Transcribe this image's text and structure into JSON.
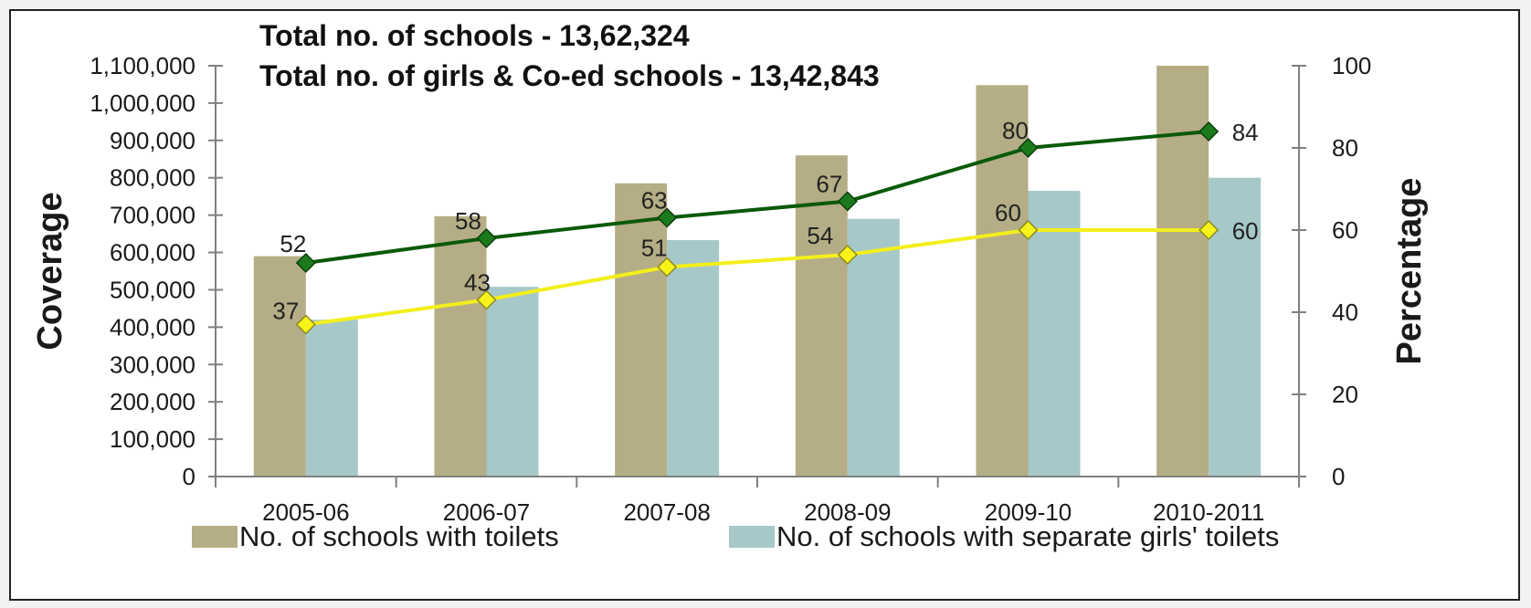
{
  "chart_data": {
    "type": "bar",
    "categories": [
      "2005-06",
      "2006-07",
      "2007-08",
      "2008-09",
      "2009-10",
      "2010-2011"
    ],
    "ylabel": "Coverage",
    "y2label": "Percentage",
    "ylim": [
      0,
      1100000
    ],
    "y2lim": [
      0,
      100
    ],
    "yticks": [
      "0",
      "100,000",
      "200,000",
      "300,000",
      "400,000",
      "500,000",
      "600,000",
      "700,000",
      "800,000",
      "900,000",
      "1,000,000",
      "1,100,000"
    ],
    "y2ticks": [
      "0",
      "20",
      "40",
      "60",
      "80",
      "100"
    ],
    "annotations": [
      "Total no. of schools - 13,62,324",
      "Total no. of girls & Co-ed schools - 13,42,843"
    ],
    "series": [
      {
        "name": "No. of schools with toilets",
        "kind": "bar",
        "axis": "left",
        "color": "#b5ad85",
        "values": [
          590000,
          697000,
          785000,
          860000,
          1048000,
          1100000
        ]
      },
      {
        "name": "No. of schools with separate girls' toilets",
        "kind": "bar",
        "axis": "left",
        "color": "#a6c8c8",
        "values": [
          420000,
          508000,
          633000,
          690000,
          765000,
          800000
        ]
      },
      {
        "name": "",
        "kind": "line",
        "axis": "right",
        "color": "#0a5a0a",
        "marker": "#1b7a1b",
        "values": [
          52,
          58,
          63,
          67,
          80,
          84
        ],
        "labels": [
          "52",
          "58",
          "63",
          "67",
          "80",
          "84"
        ]
      },
      {
        "name": "",
        "kind": "line",
        "axis": "right",
        "color": "#f2ef1c",
        "marker": "#f7f21a",
        "values": [
          37,
          43,
          51,
          54,
          60,
          60
        ],
        "labels": [
          "37",
          "43",
          "51",
          "54",
          "60",
          "60"
        ]
      }
    ],
    "legend": "bottom",
    "grid": false
  }
}
